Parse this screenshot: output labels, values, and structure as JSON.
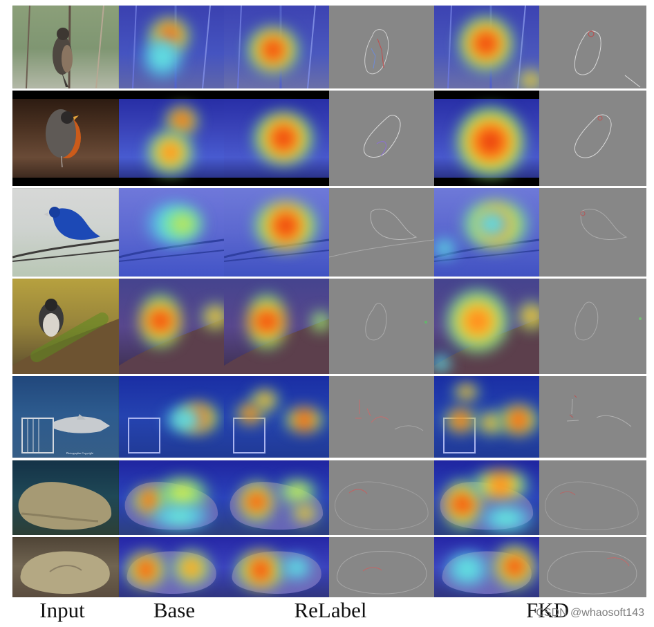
{
  "figure": {
    "column_labels": {
      "input": "Input",
      "base": "Base",
      "relabel": "ReLabel",
      "fkd": "FKD"
    },
    "watermark": "CSDN @whaosoft143"
  }
}
